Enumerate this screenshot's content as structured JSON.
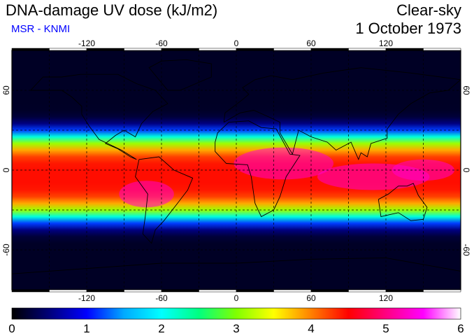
{
  "header": {
    "title": "DNA-damage UV dose (kJ/m2)",
    "subtitle": "MSR - KNMI",
    "scenario": "Clear-sky",
    "date": "1 October 1973"
  },
  "map": {
    "projection": "equirectangular",
    "extent": {
      "lon": [
        -180,
        180
      ],
      "lat": [
        -90,
        90
      ]
    },
    "grid": {
      "lon_step": 30,
      "lat_step": 30,
      "style": "dashed"
    },
    "lon_tick_labels": [
      "-120",
      "-60",
      "0",
      "60",
      "120"
    ],
    "lon_tick_values": [
      -120,
      -60,
      0,
      60,
      120
    ],
    "lat_tick_labels": [
      "60",
      "0",
      "-60"
    ],
    "lat_tick_values": [
      60,
      0,
      -60
    ],
    "coastlines": true
  },
  "colorbar": {
    "min": 0,
    "max": 6,
    "tick_labels": [
      "0",
      "1",
      "2",
      "3",
      "4",
      "5",
      "6"
    ],
    "colormap": [
      "#000000",
      "#00007a",
      "#0000ff",
      "#00aaff",
      "#00ffff",
      "#00ff80",
      "#80ff00",
      "#ffff00",
      "#ff8000",
      "#ff0000",
      "#ff0080",
      "#ff00ff",
      "#ffffff"
    ]
  }
}
